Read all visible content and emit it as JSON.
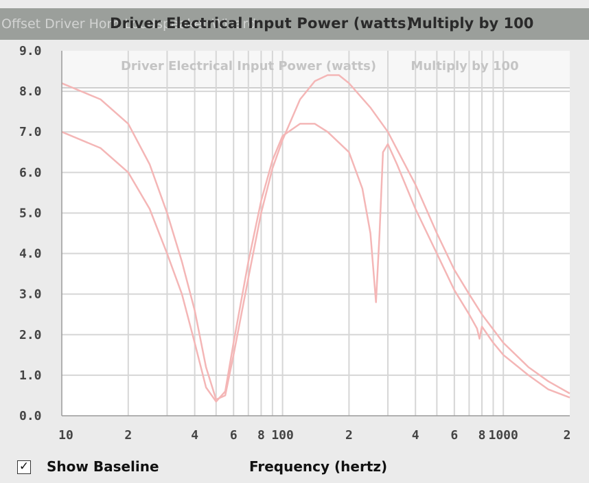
{
  "window": {
    "title": "Offset Driver Horn Loudspeaker Wizard",
    "header_title": "Driver Electrical Input Power (watts)",
    "header_multiplier": "Multiply by 100"
  },
  "controls": {
    "show_baseline_label": "Show Baseline",
    "show_baseline_checked": true,
    "checkmark": "✓"
  },
  "colors": {
    "curve": "#f4b6b6",
    "grid": "#d6d6d6",
    "axis_text": "#444444"
  },
  "chart_data": {
    "type": "line",
    "title": "Driver Electrical Input Power (watts)",
    "subtitle": "Multiply by 100",
    "xlabel": "Frequency (hertz)",
    "ylabel": "",
    "x_scale": "log",
    "xlim": [
      10,
      2000
    ],
    "ylim": [
      0,
      9
    ],
    "grid": true,
    "legend": "none",
    "y_ticks": [
      "0.0",
      "1.0",
      "2.0",
      "3.0",
      "4.0",
      "5.0",
      "6.0",
      "7.0",
      "8.0",
      "9.0"
    ],
    "x_ticks": [
      {
        "value": 10,
        "label": "10"
      },
      {
        "value": 20,
        "label": "2"
      },
      {
        "value": 40,
        "label": "4"
      },
      {
        "value": 60,
        "label": "6"
      },
      {
        "value": 80,
        "label": "8"
      },
      {
        "value": 100,
        "label": "100"
      },
      {
        "value": 200,
        "label": "2"
      },
      {
        "value": 400,
        "label": "4"
      },
      {
        "value": 600,
        "label": "6"
      },
      {
        "value": 800,
        "label": "8"
      },
      {
        "value": 1000,
        "label": "1000"
      },
      {
        "value": 2000,
        "label": "2"
      }
    ],
    "series": [
      {
        "points": [
          [
            10,
            8.2
          ],
          [
            15,
            7.8
          ],
          [
            20,
            7.2
          ],
          [
            25,
            6.2
          ],
          [
            30,
            5.0
          ],
          [
            35,
            3.8
          ],
          [
            40,
            2.6
          ],
          [
            45,
            1.2
          ],
          [
            50,
            0.4
          ],
          [
            55,
            0.5
          ],
          [
            60,
            1.5
          ],
          [
            70,
            3.4
          ],
          [
            80,
            5.0
          ],
          [
            90,
            6.1
          ],
          [
            100,
            6.8
          ],
          [
            120,
            7.8
          ],
          [
            140,
            8.25
          ],
          [
            160,
            8.4
          ],
          [
            180,
            8.4
          ],
          [
            200,
            8.2
          ],
          [
            250,
            7.6
          ],
          [
            300,
            7.0
          ],
          [
            400,
            5.7
          ],
          [
            500,
            4.5
          ],
          [
            600,
            3.6
          ],
          [
            700,
            3.0
          ],
          [
            800,
            2.5
          ],
          [
            1000,
            1.8
          ],
          [
            1300,
            1.2
          ],
          [
            1600,
            0.85
          ],
          [
            2000,
            0.55
          ]
        ]
      },
      {
        "points": [
          [
            10,
            7.0
          ],
          [
            15,
            6.6
          ],
          [
            20,
            6.0
          ],
          [
            25,
            5.1
          ],
          [
            30,
            4.0
          ],
          [
            35,
            3.0
          ],
          [
            40,
            1.8
          ],
          [
            45,
            0.7
          ],
          [
            50,
            0.35
          ],
          [
            55,
            0.6
          ],
          [
            60,
            1.8
          ],
          [
            70,
            3.8
          ],
          [
            80,
            5.3
          ],
          [
            90,
            6.3
          ],
          [
            100,
            6.9
          ],
          [
            120,
            7.2
          ],
          [
            140,
            7.2
          ],
          [
            160,
            7.0
          ],
          [
            200,
            6.5
          ],
          [
            230,
            5.6
          ],
          [
            250,
            4.5
          ],
          [
            265,
            2.8
          ],
          [
            275,
            4.5
          ],
          [
            285,
            6.5
          ],
          [
            300,
            6.7
          ],
          [
            330,
            6.2
          ],
          [
            400,
            5.1
          ],
          [
            500,
            4.0
          ],
          [
            600,
            3.1
          ],
          [
            700,
            2.5
          ],
          [
            760,
            2.15
          ],
          [
            780,
            1.9
          ],
          [
            800,
            2.2
          ],
          [
            900,
            1.8
          ],
          [
            1000,
            1.5
          ],
          [
            1300,
            1.0
          ],
          [
            1600,
            0.65
          ],
          [
            2000,
            0.45
          ]
        ]
      }
    ]
  }
}
